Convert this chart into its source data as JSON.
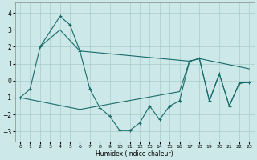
{
  "xlabel": "Humidex (Indice chaleur)",
  "bg_color": "#cce8e8",
  "grid_color": "#aacccc",
  "line_color": "#1a6b6b",
  "xlim": [
    -0.5,
    23.5
  ],
  "ylim": [
    -3.6,
    4.6
  ],
  "yticks": [
    -3,
    -2,
    -1,
    0,
    1,
    2,
    3,
    4
  ],
  "xticks": [
    0,
    1,
    2,
    3,
    4,
    5,
    6,
    7,
    8,
    9,
    10,
    11,
    12,
    13,
    14,
    15,
    16,
    17,
    18,
    19,
    20,
    21,
    22,
    23
  ],
  "line1_x": [
    0,
    1,
    2,
    4,
    5,
    6,
    7,
    8,
    9,
    10,
    11,
    12,
    13,
    14,
    15,
    16,
    17,
    18,
    19,
    20,
    21,
    22,
    23
  ],
  "line1_y": [
    -1.0,
    -0.5,
    2.0,
    3.8,
    3.3,
    1.75,
    -0.5,
    -1.6,
    -2.1,
    -2.95,
    -2.95,
    -2.5,
    -1.5,
    -2.3,
    -1.5,
    -1.2,
    1.15,
    1.3,
    -1.2,
    0.4,
    -1.5,
    -0.15,
    -0.1
  ],
  "line2_x": [
    2,
    4,
    6,
    17,
    18,
    23
  ],
  "line2_y": [
    2.0,
    3.0,
    1.75,
    1.15,
    1.3,
    0.7
  ],
  "line3_x": [
    0,
    6,
    16,
    17,
    18,
    19,
    20,
    21,
    22,
    23
  ],
  "line3_y": [
    -1.0,
    -1.7,
    -0.65,
    1.15,
    1.3,
    -1.2,
    0.4,
    -1.5,
    -0.15,
    -0.1
  ]
}
